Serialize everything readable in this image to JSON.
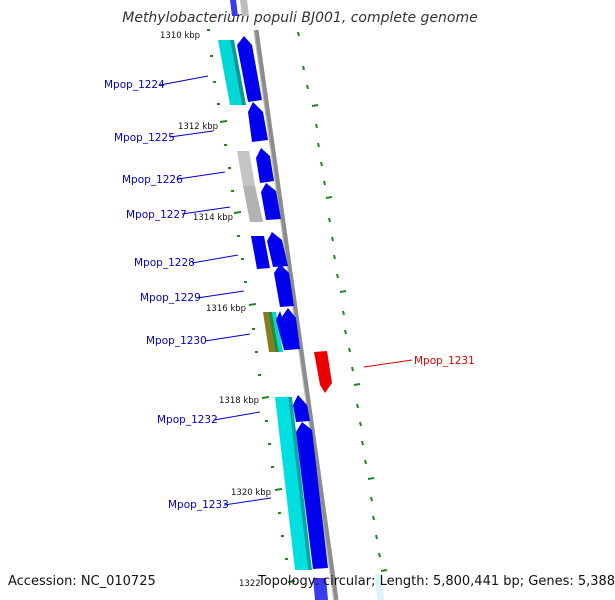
{
  "header": {
    "title": "Methylobacterium populi BJ001, complete genome"
  },
  "footer": {
    "accession": "Accession: NC_010725",
    "summary": "Topology: circular; Length: 5,800,441 bp; Genes: 5,388"
  },
  "ticks": [
    {
      "label": "1310 kbp"
    },
    {
      "label": "1312 kbp"
    },
    {
      "label": "1314 kbp"
    },
    {
      "label": "1316 kbp"
    },
    {
      "label": "1318 kbp"
    },
    {
      "label": "1320 kbp"
    },
    {
      "label": "1322"
    }
  ],
  "genes": [
    {
      "name": "Mpop_1224",
      "color": "#0000cc"
    },
    {
      "name": "Mpop_1225",
      "color": "#0000cc"
    },
    {
      "name": "Mpop_1226",
      "color": "#0000cc"
    },
    {
      "name": "Mpop_1227",
      "color": "#0000cc"
    },
    {
      "name": "Mpop_1228",
      "color": "#0000cc"
    },
    {
      "name": "Mpop_1229",
      "color": "#0000cc"
    },
    {
      "name": "Mpop_1230",
      "color": "#0000cc"
    },
    {
      "name": "Mpop_1231",
      "color": "#e00000"
    },
    {
      "name": "Mpop_1232",
      "color": "#0000cc"
    },
    {
      "name": "Mpop_1233",
      "color": "#0000cc"
    }
  ],
  "colors": {
    "cds": "#0000ee",
    "cds_dark": "#000099",
    "rna_cyan": "#00d8d8",
    "cog_gray": "#bdbdbd",
    "cog_olive": "#8a7a20",
    "cog_green": "#2e8b2e",
    "reverse_cds": "#ee0000",
    "backbone": "#8c8c8c",
    "tick": "#1a8a1a"
  }
}
